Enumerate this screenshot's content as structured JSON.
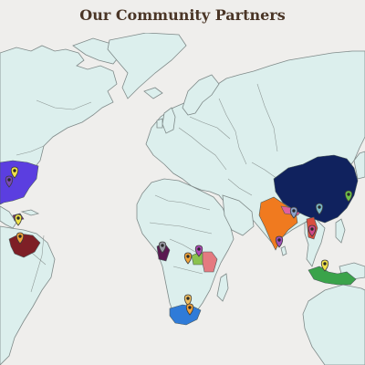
{
  "page": {
    "title": "Our Community Partners"
  },
  "map": {
    "ocean_color": "#efeeec",
    "land_color": "#dcefed",
    "highlighted_countries": [
      {
        "name": "United States",
        "color": "#5b3ee0"
      },
      {
        "name": "Haiti",
        "color": "#7a2a68"
      },
      {
        "name": "Venezuela",
        "color": "#7e1f26"
      },
      {
        "name": "Cameroon",
        "color": "#5a1850"
      },
      {
        "name": "Uganda",
        "color": "#8ac24e"
      },
      {
        "name": "Kenya",
        "color": "#e47a80"
      },
      {
        "name": "South Africa",
        "color": "#2f7bd8"
      },
      {
        "name": "India",
        "color": "#f07a1f"
      },
      {
        "name": "Nepal",
        "color": "#e0609e"
      },
      {
        "name": "China",
        "color": "#10225e"
      },
      {
        "name": "Myanmar",
        "color": "#d94f3f"
      },
      {
        "name": "Indonesia",
        "color": "#3aa34a"
      }
    ],
    "markers": [
      {
        "location": "United States (north-east)",
        "color": "#f0e24a"
      },
      {
        "location": "United States (east)",
        "color": "#7a4ab8"
      },
      {
        "location": "Haiti",
        "color": "#f0e24a"
      },
      {
        "location": "Venezuela",
        "color": "#f2a43a"
      },
      {
        "location": "Cameroon",
        "color": "#9a9aa6"
      },
      {
        "location": "Uganda",
        "color": "#b048b8"
      },
      {
        "location": "Kenya",
        "color": "#f2a43a"
      },
      {
        "location": "South Africa (north)",
        "color": "#f2c060"
      },
      {
        "location": "South Africa (south)",
        "color": "#f2a43a"
      },
      {
        "location": "India (north)",
        "color": "#8aa0c8"
      },
      {
        "location": "India (east)",
        "color": "#a050b8"
      },
      {
        "location": "Nepal",
        "color": "#d04a8a"
      },
      {
        "location": "China",
        "color": "#7ab8c8"
      },
      {
        "location": "China (west)",
        "color": "#6ec24a"
      },
      {
        "location": "Indonesia",
        "color": "#f0e24a"
      }
    ]
  }
}
